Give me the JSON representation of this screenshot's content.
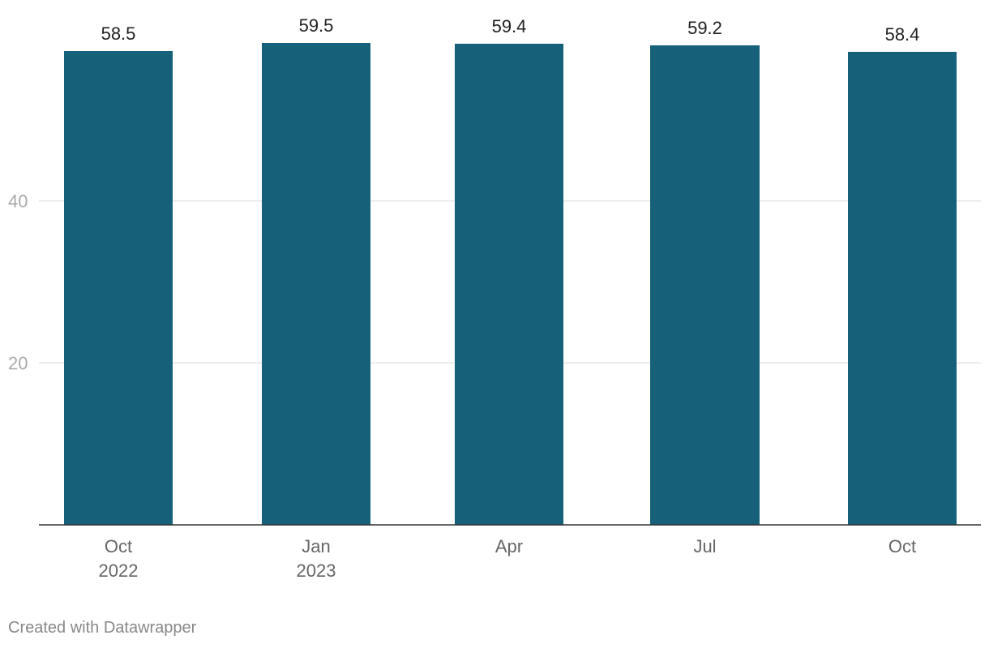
{
  "chart_data": {
    "type": "bar",
    "categories": [
      [
        "Oct",
        "2022"
      ],
      [
        "Jan",
        "2023"
      ],
      [
        "Apr"
      ],
      [
        "Jul"
      ],
      [
        "Oct"
      ]
    ],
    "values": [
      58.5,
      59.5,
      59.4,
      59.2,
      58.4
    ],
    "value_labels": [
      "58.5",
      "59.5",
      "59.4",
      "59.2",
      "58.4"
    ],
    "y_ticks": [
      20,
      40
    ],
    "ylim": [
      0,
      60
    ],
    "grid": true,
    "bar_color": "#17607a"
  },
  "footer": {
    "credit": "Created with Datawrapper"
  }
}
